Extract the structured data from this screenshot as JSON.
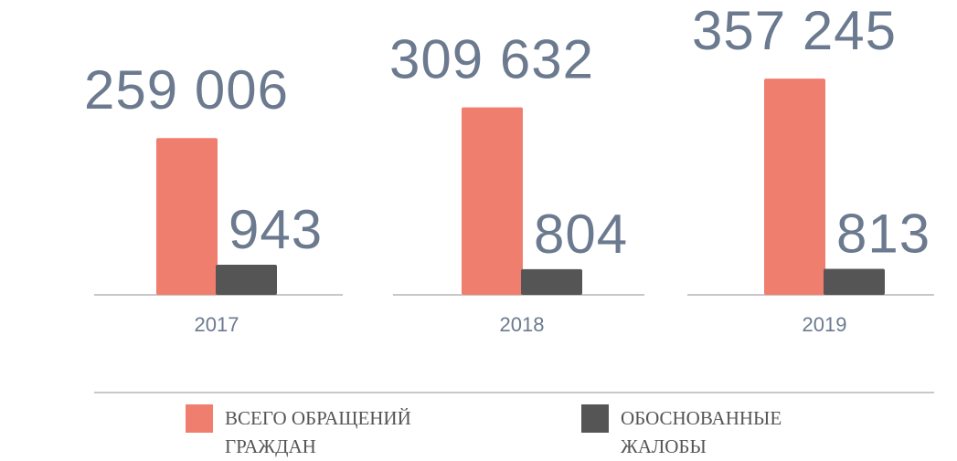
{
  "chart_data": {
    "type": "bar",
    "categories": [
      "2017",
      "2018",
      "2019"
    ],
    "series": [
      {
        "name": "ВСЕГО ОБРАЩЕНИЙ ГРАЖДАН",
        "color": "#f07e6e",
        "values": [
          259006,
          309632,
          357245
        ],
        "value_labels": [
          "259 006",
          "309 632",
          "357 245"
        ]
      },
      {
        "name": "ОБОСНОВАННЫЕ ЖАЛОБЫ",
        "color": "#555555",
        "axis": "y2",
        "values": [
          943,
          804,
          813
        ]
      }
    ],
    "ylim": [
      0,
      380000
    ],
    "y2lim": [
      0,
      7200
    ],
    "grid": false
  }
}
